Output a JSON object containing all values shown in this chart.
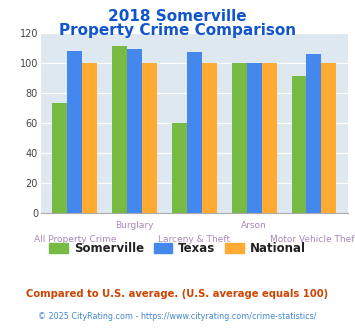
{
  "title_line1": "2018 Somerville",
  "title_line2": "Property Crime Comparison",
  "somerville": [
    73,
    111,
    60,
    100,
    91
  ],
  "texas": [
    108,
    109,
    107,
    100,
    106
  ],
  "national": [
    100,
    100,
    100,
    100,
    100
  ],
  "color_somerville": "#77bb44",
  "color_texas": "#4488ee",
  "color_national": "#ffaa33",
  "ylim": [
    0,
    120
  ],
  "yticks": [
    0,
    20,
    40,
    60,
    80,
    100,
    120
  ],
  "plot_bg": "#dde8f0",
  "title_color": "#1155cc",
  "label_color_top": "#aa88bb",
  "label_color_bot": "#aa88bb",
  "legend_labels": [
    "Somerville",
    "Texas",
    "National"
  ],
  "footnote1": "Compared to U.S. average. (U.S. average equals 100)",
  "footnote2": "© 2025 CityRating.com - https://www.cityrating.com/crime-statistics/",
  "footnote1_color": "#cc4400",
  "footnote2_color": "#4488cc"
}
